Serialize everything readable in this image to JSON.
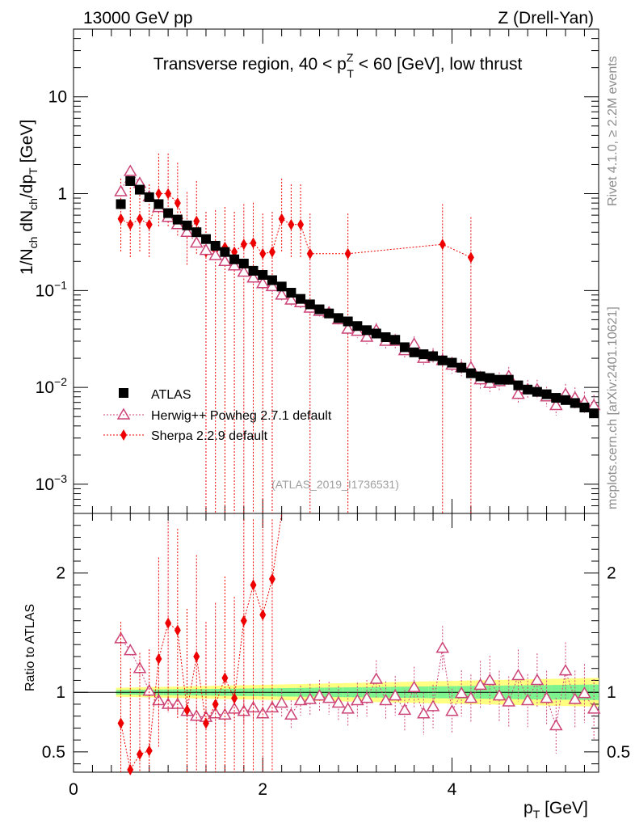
{
  "header": {
    "left_label": "13000 GeV pp",
    "right_label": "Z (Drell-Yan)",
    "rivet_label": "Rivet 4.1.0, ≥ 2.2M events",
    "mcplots_label": "mcplots.cern.ch [arXiv:2401.10621]",
    "analysis_ref": "(ATLAS_2019_I1736531)"
  },
  "colors": {
    "atlas": "#000000",
    "herwig": "#cc4477",
    "sherpa": "#ee0000",
    "band_green": "#7cf38f",
    "band_yellow": "#ffff80"
  },
  "chart_data": [
    {
      "type": "scatter",
      "title": "Transverse region, 40 < p_T^Z < 60 [GeV], low thrust",
      "xlabel": "p_T [GeV]",
      "ylabel": "1/N_ch dN_ch/dp_T [GeV]",
      "yscale": "log",
      "ylim": [
        0.0005,
        50
      ],
      "xlim": [
        0,
        5.55
      ],
      "y_ticks": [
        "10^-3",
        "10^-2",
        "10^-1",
        "1",
        "10"
      ],
      "legend_position": "lower-left",
      "x": [
        0.5,
        0.6,
        0.7,
        0.8,
        0.9,
        1.0,
        1.1,
        1.2,
        1.3,
        1.4,
        1.5,
        1.6,
        1.7,
        1.8,
        1.9,
        2.0,
        2.1,
        2.2,
        2.3,
        2.4,
        2.5,
        2.6,
        2.7,
        2.8,
        2.9,
        3.0,
        3.1,
        3.2,
        3.3,
        3.4,
        3.5,
        3.6,
        3.7,
        3.8,
        3.9,
        4.0,
        4.1,
        4.2,
        4.3,
        4.4,
        4.5,
        4.6,
        4.7,
        4.8,
        4.9,
        5.0,
        5.1,
        5.2,
        5.3,
        5.4,
        5.5
      ],
      "series": [
        {
          "name": "ATLAS",
          "marker": "square",
          "values": [
            0.78,
            1.35,
            1.1,
            0.92,
            0.78,
            0.63,
            0.54,
            0.47,
            0.4,
            0.34,
            0.29,
            0.25,
            0.21,
            0.19,
            0.16,
            0.145,
            0.128,
            0.11,
            0.095,
            0.082,
            0.072,
            0.064,
            0.058,
            0.052,
            0.048,
            0.043,
            0.039,
            0.036,
            0.033,
            0.031,
            0.026,
            0.023,
            0.022,
            0.021,
            0.019,
            0.018,
            0.016,
            0.014,
            0.013,
            0.0125,
            0.012,
            0.012,
            0.0105,
            0.0095,
            0.009,
            0.0085,
            0.0078,
            0.0074,
            0.0069,
            0.0062,
            0.0054
          ]
        },
        {
          "name": "Herwig++ Powheg 2.7.1 default",
          "marker": "open-triangle",
          "values": [
            1.05,
            1.7,
            1.28,
            0.93,
            0.72,
            0.57,
            0.48,
            0.4,
            0.31,
            0.26,
            0.23,
            0.2,
            0.18,
            0.155,
            0.135,
            0.118,
            0.11,
            0.09,
            0.08,
            0.075,
            0.066,
            0.061,
            0.059,
            0.05,
            0.04,
            0.038,
            0.033,
            0.039,
            0.03,
            0.03,
            0.024,
            0.028,
            0.02,
            0.021,
            0.019,
            0.017,
            0.016,
            0.016,
            0.012,
            0.011,
            0.0115,
            0.013,
            0.0085,
            0.0095,
            0.0095,
            0.008,
            0.0065,
            0.0085,
            0.0078,
            0.007,
            0.0065
          ]
        },
        {
          "name": "Sherpa 2.2.9 default",
          "marker": "diamond",
          "values": [
            0.55,
            0.48,
            0.55,
            0.48,
            1.0,
            1.0,
            0.8,
            0.4,
            0.52,
            0.25,
            0.26,
            0.28,
            0.25,
            0.3,
            0.31,
            0.24,
            0.25,
            0.55,
            0.48,
            0.48,
            0.24,
            null,
            null,
            null,
            0.24,
            null,
            null,
            null,
            null,
            null,
            null,
            null,
            null,
            null,
            0.3,
            null,
            null,
            0.22,
            null,
            null,
            null,
            null,
            null,
            null,
            null,
            null,
            null,
            null,
            null,
            null,
            null
          ]
        }
      ]
    },
    {
      "type": "scatter",
      "ylabel": "Ratio to ATLAS",
      "xlabel": "p_T [GeV]",
      "xlim": [
        0,
        5.55
      ],
      "ylim": [
        0.33,
        2.5
      ],
      "x_ticks": [
        "0",
        "2",
        "4"
      ],
      "y_ticks": [
        "0.5",
        "1",
        "2"
      ],
      "series": [
        {
          "name": "Herwig++ Powheg 2.7.1 default",
          "marker": "open-triangle",
          "values": [
            1.45,
            1.35,
            1.2,
            1.01,
            0.93,
            0.9,
            0.9,
            0.84,
            0.8,
            0.79,
            0.82,
            0.81,
            0.86,
            0.84,
            0.87,
            0.82,
            0.87,
            0.91,
            0.81,
            0.93,
            0.94,
            0.97,
            0.95,
            0.91,
            0.86,
            0.93,
            0.95,
            1.11,
            0.93,
            0.97,
            0.85,
            1.04,
            0.82,
            0.88,
            1.37,
            0.84,
            0.99,
            0.95,
            1.06,
            1.1,
            0.97,
            0.92,
            1.14,
            0.93,
            1.1,
            0.95,
            0.72,
            1.18,
            0.94,
            0.99,
            0.86
          ]
        },
        {
          "name": "Sherpa 2.2.9 default",
          "marker": "diamond",
          "values": [
            0.74,
            0.35,
            0.48,
            0.51,
            1.28,
            1.58,
            1.52,
            0.85,
            1.3,
            0.74,
            0.9,
            1.12,
            0.95,
            1.6,
            1.9,
            1.65,
            1.95
          ]
        }
      ],
      "band_note": "ATLAS uncertainty band (green stat, yellow total) around 1"
    }
  ],
  "legend": [
    {
      "label": "ATLAS"
    },
    {
      "label": "Herwig++ Powheg 2.7.1 default"
    },
    {
      "label": "Sherpa 2.2.9 default"
    }
  ]
}
